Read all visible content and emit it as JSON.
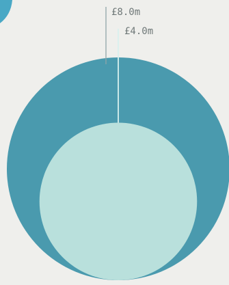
{
  "chart_data": {
    "type": "nested-circle",
    "values": [
      8.0,
      4.0
    ],
    "labels": [
      "£8.0m",
      "£4.0m"
    ],
    "series_colors": [
      "#4a9aae",
      "#b9e0dc"
    ],
    "leader_color": "#8fa5a8"
  },
  "colors": {
    "background": "#efefec",
    "accent_shape": "#49a8c5"
  }
}
